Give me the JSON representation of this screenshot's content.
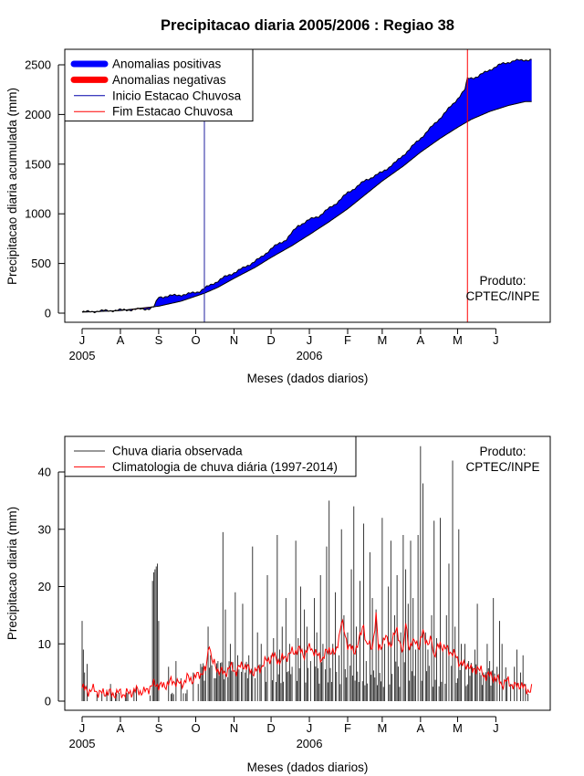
{
  "chart_data": [
    {
      "type": "area",
      "title": "Precipitacao diaria 2005/2006 : Regiao 38",
      "xlabel": "Meses (dados diarios)",
      "ylabel": "Precipitacao diaria acumulada (mm)",
      "ylim": [
        0,
        2600
      ],
      "yticks": [
        0,
        500,
        1000,
        1500,
        2000,
        2500
      ],
      "month_ticks": [
        "J",
        "A",
        "S",
        "O",
        "N",
        "D",
        "J",
        "F",
        "M",
        "A",
        "M",
        "J"
      ],
      "month_days": [
        0,
        31,
        62,
        92,
        123,
        153,
        184,
        215,
        243,
        274,
        304,
        335
      ],
      "year_labels": [
        {
          "day": 0,
          "label": "2005"
        },
        {
          "day": 184,
          "label": "2006"
        }
      ],
      "legend": {
        "position": "top-left",
        "items": [
          {
            "label": "Anomalias positivas",
            "color": "#0000ff",
            "kind": "thick"
          },
          {
            "label": "Anomalias negativas",
            "color": "#ff0000",
            "kind": "thick"
          },
          {
            "label": "Inicio Estacao Chuvosa",
            "color": "#0000aa",
            "kind": "thin"
          },
          {
            "label": "Fim Estacao Chuvosa",
            "color": "#ff0000",
            "kind": "thin"
          }
        ]
      },
      "vertical_markers": [
        {
          "name": "inicio",
          "day": 99,
          "color": "#2020a0"
        },
        {
          "name": "fim",
          "day": 312,
          "color": "#ff0000"
        }
      ],
      "credit": [
        "Produto:",
        "CPTEC/INPE"
      ],
      "observed_cumulative_knots": [
        [
          0,
          10
        ],
        [
          20,
          25
        ],
        [
          40,
          35
        ],
        [
          54,
          45
        ],
        [
          58,
          60
        ],
        [
          62,
          160
        ],
        [
          72,
          175
        ],
        [
          85,
          190
        ],
        [
          95,
          220
        ],
        [
          105,
          290
        ],
        [
          115,
          360
        ],
        [
          130,
          450
        ],
        [
          145,
          560
        ],
        [
          153,
          650
        ],
        [
          165,
          740
        ],
        [
          175,
          880
        ],
        [
          184,
          940
        ],
        [
          192,
          980
        ],
        [
          205,
          1100
        ],
        [
          215,
          1210
        ],
        [
          230,
          1340
        ],
        [
          243,
          1420
        ],
        [
          255,
          1530
        ],
        [
          265,
          1650
        ],
        [
          274,
          1760
        ],
        [
          285,
          1900
        ],
        [
          300,
          2100
        ],
        [
          310,
          2250
        ],
        [
          312,
          2360
        ],
        [
          320,
          2380
        ],
        [
          330,
          2450
        ],
        [
          340,
          2510
        ],
        [
          350,
          2540
        ],
        [
          359,
          2550
        ]
      ],
      "climatology_cumulative_knots": [
        [
          0,
          10
        ],
        [
          30,
          25
        ],
        [
          62,
          70
        ],
        [
          80,
          120
        ],
        [
          99,
          200
        ],
        [
          110,
          260
        ],
        [
          123,
          350
        ],
        [
          140,
          460
        ],
        [
          153,
          560
        ],
        [
          170,
          680
        ],
        [
          184,
          790
        ],
        [
          200,
          920
        ],
        [
          215,
          1050
        ],
        [
          230,
          1200
        ],
        [
          243,
          1330
        ],
        [
          260,
          1480
        ],
        [
          274,
          1620
        ],
        [
          290,
          1760
        ],
        [
          304,
          1870
        ],
        [
          315,
          1950
        ],
        [
          330,
          2030
        ],
        [
          345,
          2090
        ],
        [
          359,
          2130
        ]
      ],
      "negative_anomaly_span_days": [
        40,
        57
      ]
    },
    {
      "type": "bar",
      "title": "",
      "xlabel": "Meses (dados diarios)",
      "ylabel": "Precipitacao diaria (mm)",
      "ylim": [
        0,
        45
      ],
      "yticks": [
        0,
        10,
        20,
        30,
        40
      ],
      "month_ticks": [
        "J",
        "A",
        "S",
        "O",
        "N",
        "D",
        "J",
        "F",
        "M",
        "A",
        "M",
        "J"
      ],
      "month_days": [
        0,
        31,
        62,
        92,
        123,
        153,
        184,
        215,
        243,
        274,
        304,
        335
      ],
      "year_labels": [
        {
          "day": 0,
          "label": "2005"
        },
        {
          "day": 184,
          "label": "2006"
        }
      ],
      "legend": {
        "position": "top-left",
        "items": [
          {
            "label": "Chuva diaria observada",
            "color": "#333333",
            "kind": "thin"
          },
          {
            "label": "Climatologia de chuva diária (1997-2014)",
            "color": "#ff0000",
            "kind": "thin"
          }
        ]
      },
      "credit": [
        "Produto:",
        "CPTEC/INPE"
      ],
      "observed_daily_peaks": [
        [
          0,
          14
        ],
        [
          1,
          9
        ],
        [
          2,
          5
        ],
        [
          4,
          6.5
        ],
        [
          20,
          2
        ],
        [
          23,
          3
        ],
        [
          35,
          1
        ],
        [
          42,
          2
        ],
        [
          44,
          2.5
        ],
        [
          55,
          1
        ],
        [
          57,
          21
        ],
        [
          58,
          22.5
        ],
        [
          59,
          23
        ],
        [
          60,
          23.5
        ],
        [
          61,
          24
        ],
        [
          62,
          14
        ],
        [
          70,
          6
        ],
        [
          76,
          7
        ],
        [
          80,
          4
        ],
        [
          85,
          2
        ],
        [
          90,
          5
        ],
        [
          94,
          3
        ],
        [
          100,
          6
        ],
        [
          102,
          13
        ],
        [
          104,
          8
        ],
        [
          108,
          4
        ],
        [
          110,
          7
        ],
        [
          114,
          29.5
        ],
        [
          116,
          16
        ],
        [
          120,
          10
        ],
        [
          124,
          19
        ],
        [
          126,
          8
        ],
        [
          130,
          17
        ],
        [
          132,
          5
        ],
        [
          135,
          8
        ],
        [
          138,
          27
        ],
        [
          140,
          4
        ],
        [
          142,
          12
        ],
        [
          145,
          10
        ],
        [
          148,
          6
        ],
        [
          150,
          22
        ],
        [
          153,
          8
        ],
        [
          155,
          11
        ],
        [
          158,
          29
        ],
        [
          160,
          9
        ],
        [
          162,
          13
        ],
        [
          165,
          18
        ],
        [
          168,
          10
        ],
        [
          170,
          6
        ],
        [
          173,
          28
        ],
        [
          175,
          11
        ],
        [
          177,
          20
        ],
        [
          180,
          16
        ],
        [
          182,
          13
        ],
        [
          185,
          7
        ],
        [
          188,
          18
        ],
        [
          190,
          12
        ],
        [
          193,
          22
        ],
        [
          195,
          10
        ],
        [
          198,
          27
        ],
        [
          200,
          35
        ],
        [
          203,
          10
        ],
        [
          205,
          19
        ],
        [
          208,
          8
        ],
        [
          210,
          30
        ],
        [
          212,
          15
        ],
        [
          215,
          12
        ],
        [
          218,
          23
        ],
        [
          220,
          34
        ],
        [
          222,
          13
        ],
        [
          225,
          21
        ],
        [
          228,
          31
        ],
        [
          230,
          7
        ],
        [
          233,
          26
        ],
        [
          235,
          18
        ],
        [
          238,
          16
        ],
        [
          240,
          10
        ],
        [
          243,
          32
        ],
        [
          245,
          10
        ],
        [
          248,
          20
        ],
        [
          250,
          28
        ],
        [
          253,
          15
        ],
        [
          255,
          22
        ],
        [
          258,
          12
        ],
        [
          260,
          29
        ],
        [
          262,
          23
        ],
        [
          264,
          17
        ],
        [
          266,
          28
        ],
        [
          268,
          18
        ],
        [
          270,
          9
        ],
        [
          272,
          29
        ],
        [
          274,
          44.5
        ],
        [
          276,
          38
        ],
        [
          278,
          12
        ],
        [
          280,
          9
        ],
        [
          283,
          15
        ],
        [
          285,
          31.5
        ],
        [
          287,
          11
        ],
        [
          290,
          32
        ],
        [
          292,
          9
        ],
        [
          295,
          15
        ],
        [
          297,
          24
        ],
        [
          300,
          42
        ],
        [
          302,
          13
        ],
        [
          305,
          30
        ],
        [
          307,
          10
        ],
        [
          310,
          10
        ],
        [
          313,
          7
        ],
        [
          316,
          6
        ],
        [
          318,
          9
        ],
        [
          320,
          17
        ],
        [
          322,
          5
        ],
        [
          325,
          5
        ],
        [
          328,
          10
        ],
        [
          330,
          7
        ],
        [
          333,
          18
        ],
        [
          336,
          6
        ],
        [
          338,
          14
        ],
        [
          340,
          10
        ],
        [
          344,
          4
        ],
        [
          347,
          3
        ],
        [
          350,
          6
        ],
        [
          352,
          9
        ],
        [
          355,
          5
        ],
        [
          357,
          8
        ],
        [
          359,
          3
        ]
      ],
      "climatology_daily_knots": [
        [
          0,
          2.3
        ],
        [
          5,
          1.8
        ],
        [
          10,
          2
        ],
        [
          15,
          1.3
        ],
        [
          20,
          1.6
        ],
        [
          25,
          1.2
        ],
        [
          30,
          1.5
        ],
        [
          35,
          1.2
        ],
        [
          40,
          1.6
        ],
        [
          45,
          1.9
        ],
        [
          50,
          1.5
        ],
        [
          55,
          2.5
        ],
        [
          60,
          3
        ],
        [
          65,
          2.5
        ],
        [
          70,
          3.2
        ],
        [
          75,
          3.5
        ],
        [
          80,
          2.8
        ],
        [
          85,
          4
        ],
        [
          90,
          3.8
        ],
        [
          95,
          4.8
        ],
        [
          100,
          5.2
        ],
        [
          103,
          10.5
        ],
        [
          105,
          7
        ],
        [
          110,
          5.5
        ],
        [
          115,
          4.8
        ],
        [
          120,
          6
        ],
        [
          125,
          5.2
        ],
        [
          130,
          6.5
        ],
        [
          135,
          5.5
        ],
        [
          140,
          5
        ],
        [
          145,
          6
        ],
        [
          150,
          7.2
        ],
        [
          155,
          7.8
        ],
        [
          160,
          7
        ],
        [
          165,
          7.8
        ],
        [
          170,
          8.5
        ],
        [
          175,
          9
        ],
        [
          180,
          8.2
        ],
        [
          185,
          9.5
        ],
        [
          190,
          8
        ],
        [
          195,
          7.5
        ],
        [
          200,
          9.2
        ],
        [
          205,
          8
        ],
        [
          210,
          13.8
        ],
        [
          215,
          10
        ],
        [
          220,
          8.5
        ],
        [
          225,
          11
        ],
        [
          228,
          13.5
        ],
        [
          230,
          10
        ],
        [
          235,
          9.5
        ],
        [
          238,
          14.8
        ],
        [
          240,
          9
        ],
        [
          245,
          11
        ],
        [
          250,
          10
        ],
        [
          255,
          12.5
        ],
        [
          260,
          8
        ],
        [
          262,
          14
        ],
        [
          265,
          9
        ],
        [
          270,
          11
        ],
        [
          273,
          9
        ],
        [
          276,
          12.5
        ],
        [
          280,
          9.5
        ],
        [
          283,
          11
        ],
        [
          285,
          8
        ],
        [
          290,
          10
        ],
        [
          295,
          9
        ],
        [
          300,
          8.5
        ],
        [
          305,
          7
        ],
        [
          310,
          6
        ],
        [
          313,
          6.5
        ],
        [
          316,
          5
        ],
        [
          320,
          6
        ],
        [
          325,
          4.5
        ],
        [
          330,
          4.5
        ],
        [
          335,
          4
        ],
        [
          340,
          3
        ],
        [
          345,
          3.5
        ],
        [
          350,
          2.5
        ],
        [
          355,
          3
        ],
        [
          359,
          2
        ]
      ]
    }
  ]
}
